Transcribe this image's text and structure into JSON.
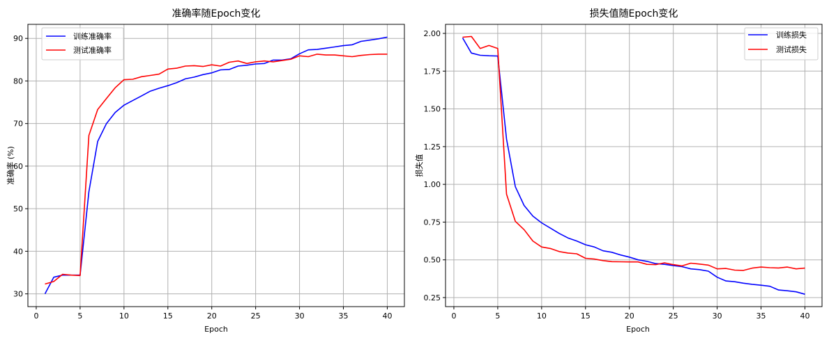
{
  "chart_data": [
    {
      "type": "line",
      "title": "准确率随Epoch变化",
      "xlabel": "Epoch",
      "ylabel": "准确率 (%)",
      "xlim": [
        -0.95,
        41.95
      ],
      "ylim": [
        27.0,
        93.3
      ],
      "xticks": [
        0,
        5,
        10,
        15,
        20,
        25,
        30,
        35,
        40
      ],
      "yticks": [
        30,
        40,
        50,
        60,
        70,
        80,
        90
      ],
      "ytick_labels": [
        "30",
        "40",
        "50",
        "60",
        "70",
        "80",
        "90"
      ],
      "grid": true,
      "legend_position": "upper left",
      "x": [
        1,
        2,
        3,
        4,
        5,
        6,
        7,
        8,
        9,
        10,
        11,
        12,
        13,
        14,
        15,
        16,
        17,
        18,
        19,
        20,
        21,
        22,
        23,
        24,
        25,
        26,
        27,
        28,
        29,
        30,
        31,
        32,
        33,
        34,
        35,
        36,
        37,
        38,
        39,
        40
      ],
      "series": [
        {
          "name": "训练准确率",
          "color": "#0000ff",
          "values": [
            30.0,
            33.9,
            34.4,
            34.4,
            34.4,
            54.0,
            65.8,
            70.0,
            72.6,
            74.3,
            75.4,
            76.5,
            77.6,
            78.3,
            78.9,
            79.6,
            80.5,
            80.9,
            81.5,
            81.9,
            82.6,
            82.7,
            83.5,
            83.7,
            84.0,
            84.1,
            84.9,
            84.9,
            85.2,
            86.4,
            87.3,
            87.4,
            87.7,
            88.0,
            88.3,
            88.5,
            89.3,
            89.6,
            89.9,
            90.3
          ]
        },
        {
          "name": "测试准确率",
          "color": "#ff0000",
          "values": [
            32.3,
            32.9,
            34.6,
            34.4,
            34.3,
            67.2,
            73.3,
            75.9,
            78.4,
            80.3,
            80.4,
            81.0,
            81.3,
            81.6,
            82.8,
            83.0,
            83.5,
            83.6,
            83.4,
            83.8,
            83.5,
            84.4,
            84.7,
            84.1,
            84.5,
            84.7,
            84.5,
            84.8,
            85.1,
            85.9,
            85.7,
            86.3,
            86.1,
            86.1,
            85.9,
            85.7,
            86.0,
            86.2,
            86.3,
            86.3
          ]
        }
      ]
    },
    {
      "type": "line",
      "title": "损失值随Epoch变化",
      "xlabel": "Epoch",
      "ylabel": "损失值",
      "xlim": [
        -0.95,
        41.95
      ],
      "ylim": [
        0.19,
        2.06
      ],
      "xticks": [
        0,
        5,
        10,
        15,
        20,
        25,
        30,
        35,
        40
      ],
      "yticks": [
        0.25,
        0.5,
        0.75,
        1.0,
        1.25,
        1.5,
        1.75,
        2.0
      ],
      "ytick_labels": [
        "0.25",
        "0.50",
        "0.75",
        "1.00",
        "1.25",
        "1.50",
        "1.75",
        "2.00"
      ],
      "grid": true,
      "legend_position": "upper right",
      "x": [
        1,
        2,
        3,
        4,
        5,
        6,
        7,
        8,
        9,
        10,
        11,
        12,
        13,
        14,
        15,
        16,
        17,
        18,
        19,
        20,
        21,
        22,
        23,
        24,
        25,
        26,
        27,
        28,
        29,
        30,
        31,
        32,
        33,
        34,
        35,
        36,
        37,
        38,
        39,
        40
      ],
      "series": [
        {
          "name": "训练损失",
          "color": "#0000ff",
          "values": [
            1.97,
            1.87,
            1.855,
            1.852,
            1.85,
            1.3,
            0.985,
            0.86,
            0.79,
            0.745,
            0.71,
            0.675,
            0.645,
            0.625,
            0.6,
            0.585,
            0.56,
            0.55,
            0.532,
            0.518,
            0.5,
            0.49,
            0.475,
            0.47,
            0.462,
            0.455,
            0.44,
            0.435,
            0.425,
            0.385,
            0.36,
            0.355,
            0.345,
            0.338,
            0.332,
            0.325,
            0.3,
            0.295,
            0.288,
            0.272
          ]
        },
        {
          "name": "测试损失",
          "color": "#ff0000",
          "values": [
            1.975,
            1.98,
            1.9,
            1.92,
            1.9,
            0.935,
            0.755,
            0.7,
            0.625,
            0.585,
            0.575,
            0.555,
            0.545,
            0.54,
            0.51,
            0.505,
            0.495,
            0.488,
            0.487,
            0.486,
            0.486,
            0.47,
            0.468,
            0.48,
            0.468,
            0.46,
            0.478,
            0.472,
            0.465,
            0.44,
            0.443,
            0.432,
            0.43,
            0.445,
            0.452,
            0.448,
            0.446,
            0.452,
            0.44,
            0.445
          ]
        }
      ]
    }
  ]
}
